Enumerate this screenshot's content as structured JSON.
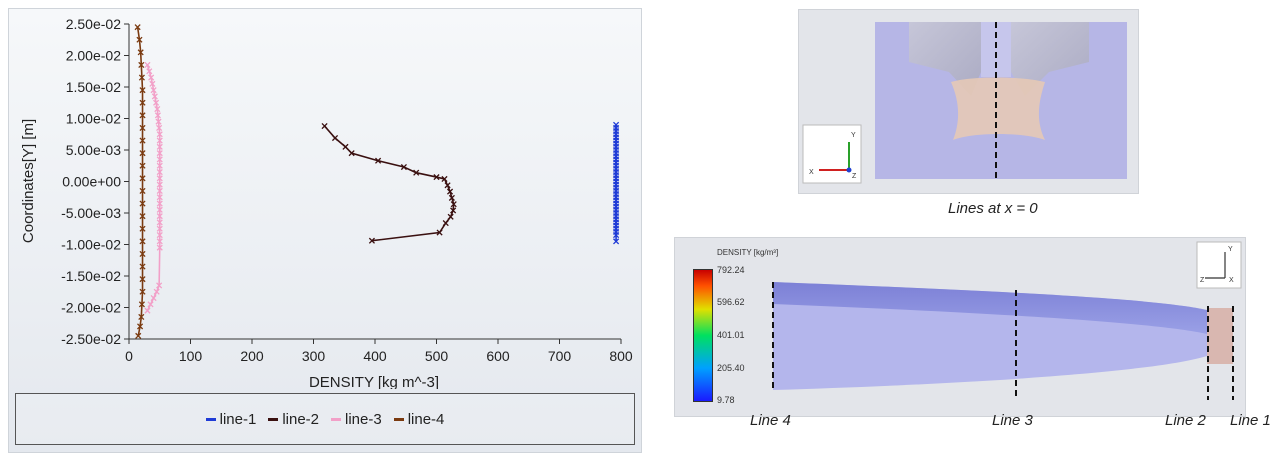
{
  "chart_data": {
    "type": "scatter",
    "title": "",
    "xlabel": "DENSITY [kg m^-3]",
    "ylabel": "Coordinates[Y] [m]",
    "xlim": [
      0,
      800
    ],
    "ylim": [
      -0.025,
      0.025
    ],
    "x_ticks": [
      "0",
      "100",
      "200",
      "300",
      "400",
      "500",
      "600",
      "700",
      "800"
    ],
    "y_ticks": [
      "2.50e-02",
      "2.00e-02",
      "1.50e-02",
      "1.00e-02",
      "5.00e-03",
      "0.00e+00",
      "-5.00e-03",
      "-1.00e-02",
      "-1.50e-02",
      "-2.00e-02",
      "-2.50e-02"
    ],
    "grid": false,
    "legend_position": "bottom",
    "series": [
      {
        "name": "line-1",
        "color": "#1f3bd6",
        "marker": "x",
        "x": [
          792,
          792,
          792,
          792,
          792,
          792,
          792,
          792,
          792,
          792,
          792,
          792,
          792,
          792,
          792,
          792,
          792,
          792,
          792,
          792,
          792,
          792,
          792,
          792,
          792,
          792,
          792,
          792,
          792,
          792,
          792,
          792,
          792,
          792,
          792,
          792,
          792
        ],
        "y": [
          0.009,
          0.0085,
          0.008,
          0.0075,
          0.007,
          0.0065,
          0.006,
          0.0055,
          0.005,
          0.0045,
          0.004,
          0.0035,
          0.003,
          0.0025,
          0.002,
          0.0015,
          0.001,
          0.0005,
          0.0,
          -0.0005,
          -0.001,
          -0.0015,
          -0.002,
          -0.0025,
          -0.003,
          -0.0035,
          -0.004,
          -0.0045,
          -0.005,
          -0.0055,
          -0.006,
          -0.0065,
          -0.007,
          -0.0075,
          -0.008,
          -0.0085,
          -0.0095
        ]
      },
      {
        "name": "line-2",
        "color": "#3a1010",
        "marker": "x",
        "x": [
          318,
          335,
          352,
          362,
          405,
          447,
          467,
          500,
          513,
          518,
          522,
          525,
          528,
          527,
          523,
          515,
          505,
          395
        ],
        "y": [
          0.0088,
          0.0069,
          0.0055,
          0.0045,
          0.0033,
          0.0023,
          0.0014,
          0.0007,
          0.0004,
          -0.0006,
          -0.0016,
          -0.0026,
          -0.0036,
          -0.0046,
          -0.0056,
          -0.0066,
          -0.0081,
          -0.0094
        ]
      },
      {
        "name": "line-3",
        "color": "#f2a0c8",
        "marker": "x",
        "x": [
          30,
          33,
          36,
          38,
          40,
          42,
          44,
          46,
          47,
          48,
          49,
          50,
          50,
          50,
          50,
          50,
          50,
          50,
          50,
          50,
          50,
          50,
          50,
          50,
          50,
          50,
          50,
          50,
          50,
          50,
          49,
          45,
          40,
          35,
          30
        ],
        "y": [
          0.0185,
          0.0175,
          0.0165,
          0.0155,
          0.0145,
          0.0135,
          0.0125,
          0.0115,
          0.0105,
          0.0095,
          0.0085,
          0.0075,
          0.0065,
          0.0055,
          0.0045,
          0.0035,
          0.0025,
          0.0015,
          0.0005,
          -0.0005,
          -0.0015,
          -0.0025,
          -0.0035,
          -0.0045,
          -0.0055,
          -0.0065,
          -0.0075,
          -0.0085,
          -0.0095,
          -0.0105,
          -0.0165,
          -0.0175,
          -0.0185,
          -0.0195,
          -0.0205
        ]
      },
      {
        "name": "line-4",
        "color": "#7a3a10",
        "marker": "x",
        "x": [
          14,
          17,
          19,
          20,
          21,
          22,
          22,
          22,
          22,
          22,
          22,
          22,
          22,
          22,
          22,
          22,
          22,
          22,
          22,
          22,
          22,
          22,
          21,
          20,
          18,
          15
        ],
        "y": [
          0.0245,
          0.0225,
          0.0205,
          0.0185,
          0.0165,
          0.0145,
          0.0125,
          0.0105,
          0.0085,
          0.0065,
          0.0045,
          0.0025,
          0.0005,
          -0.0015,
          -0.0035,
          -0.0055,
          -0.0075,
          -0.0095,
          -0.0115,
          -0.0135,
          -0.0155,
          -0.0175,
          -0.0195,
          -0.0215,
          -0.023,
          -0.0245
        ]
      }
    ]
  },
  "views": {
    "top_caption": "Lines at x = 0",
    "top_axes": {
      "y": "Y",
      "x": "X",
      "z": "Z"
    },
    "bottom_axes": {
      "y": "Y",
      "x": "X",
      "z": "Z"
    },
    "colorbar": {
      "title": "DENSITY [kg/m³]",
      "labels": [
        "792.24",
        "596.62",
        "401.01",
        "205.40",
        "9.78"
      ]
    },
    "line_labels": [
      "Line 4",
      "Line 3",
      "Line 2",
      "Line 1"
    ]
  }
}
